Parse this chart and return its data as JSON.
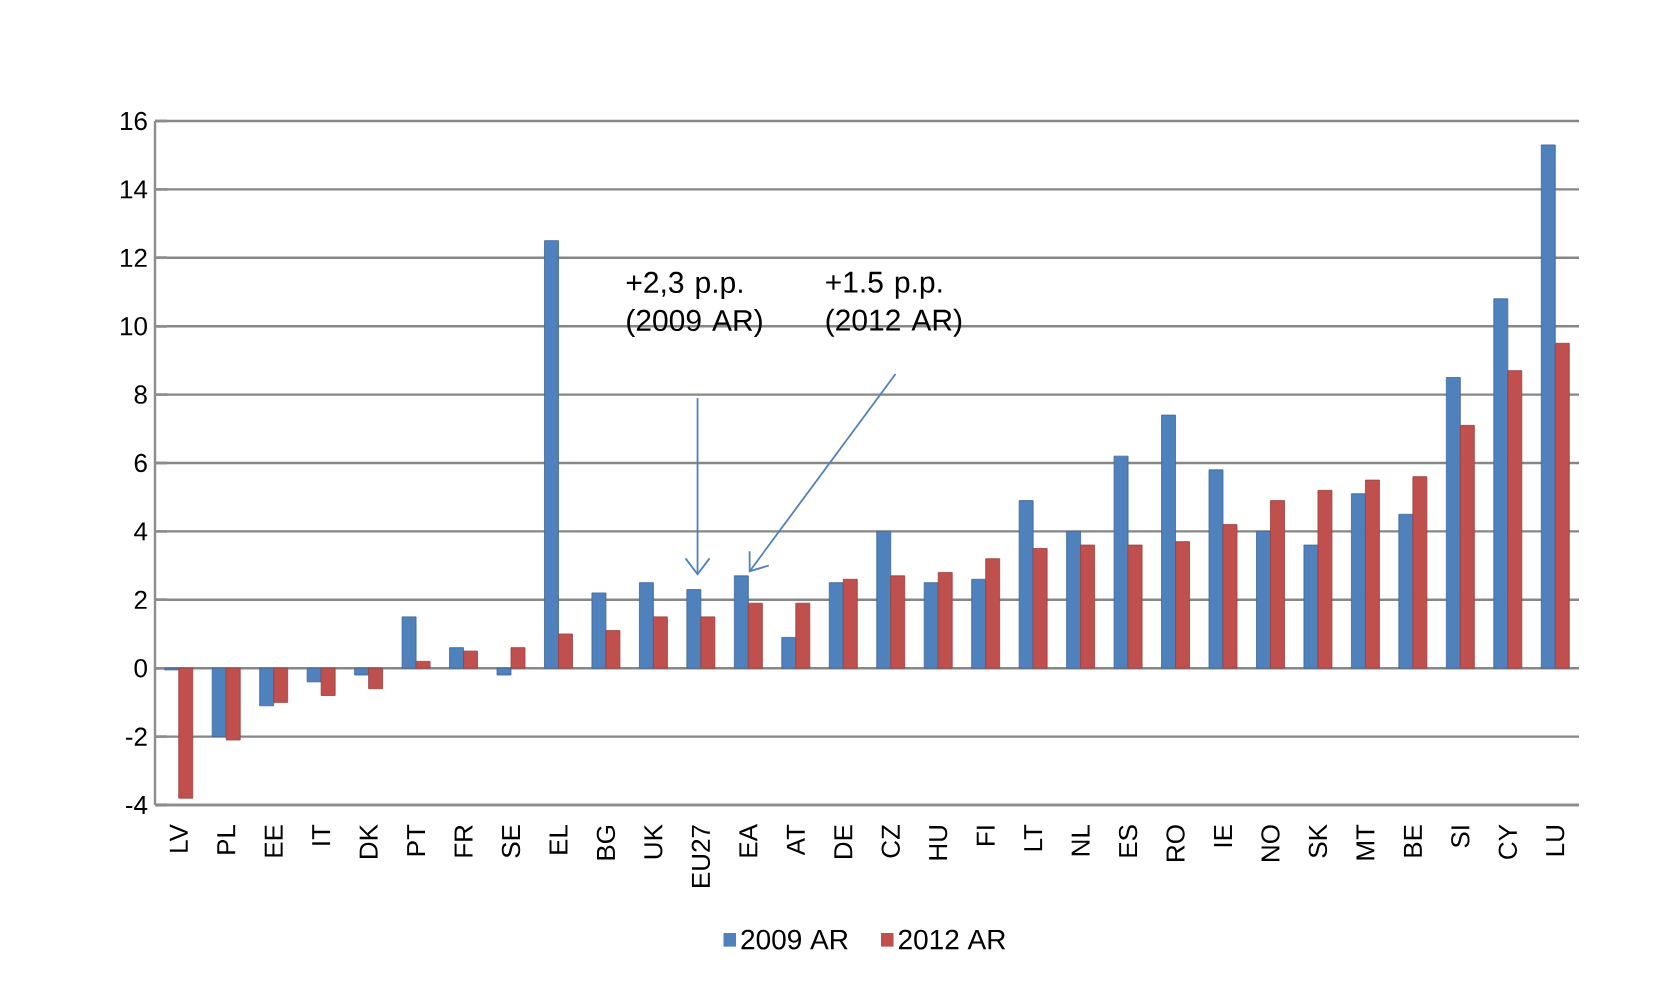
{
  "chart_data": {
    "type": "bar",
    "categories": [
      "LV",
      "PL",
      "EE",
      "IT",
      "DK",
      "PT",
      "FR",
      "SE",
      "EL",
      "BG",
      "UK",
      "EU27",
      "EA",
      "AT",
      "DE",
      "CZ",
      "HU",
      "FI",
      "LT",
      "NL",
      "ES",
      "RO",
      "IE",
      "NO",
      "SK",
      "MT",
      "BE",
      "SI",
      "CY",
      "LU"
    ],
    "series": [
      {
        "name": "2009 AR",
        "color": "#4f81bd",
        "values": [
          -0.05,
          -2.0,
          -1.1,
          -0.4,
          -0.2,
          1.5,
          0.6,
          -0.2,
          12.5,
          2.2,
          2.5,
          2.3,
          2.7,
          0.9,
          2.5,
          4.0,
          2.5,
          2.6,
          4.9,
          4.0,
          6.2,
          7.4,
          5.8,
          4.0,
          3.6,
          5.1,
          4.5,
          8.5,
          10.8,
          15.3
        ]
      },
      {
        "name": "2012 AR",
        "color": "#c0504d",
        "values": [
          -3.8,
          -2.1,
          -1.0,
          -0.8,
          -0.6,
          0.2,
          0.5,
          0.6,
          1.0,
          1.1,
          1.5,
          1.5,
          1.9,
          1.9,
          2.6,
          2.7,
          2.8,
          3.2,
          3.5,
          3.6,
          3.6,
          3.7,
          4.2,
          4.9,
          5.2,
          5.5,
          5.6,
          7.1,
          8.7,
          9.5
        ]
      }
    ],
    "ylim": [
      -4,
      16
    ],
    "yticks": [
      -4,
      -2,
      0,
      2,
      4,
      6,
      8,
      10,
      12,
      14,
      16
    ],
    "grid": "y",
    "legend": "bottom",
    "annotations": [
      "+2,3 p.p. (2009 AR)",
      "+1.5 p.p. (2012 AR)"
    ]
  }
}
